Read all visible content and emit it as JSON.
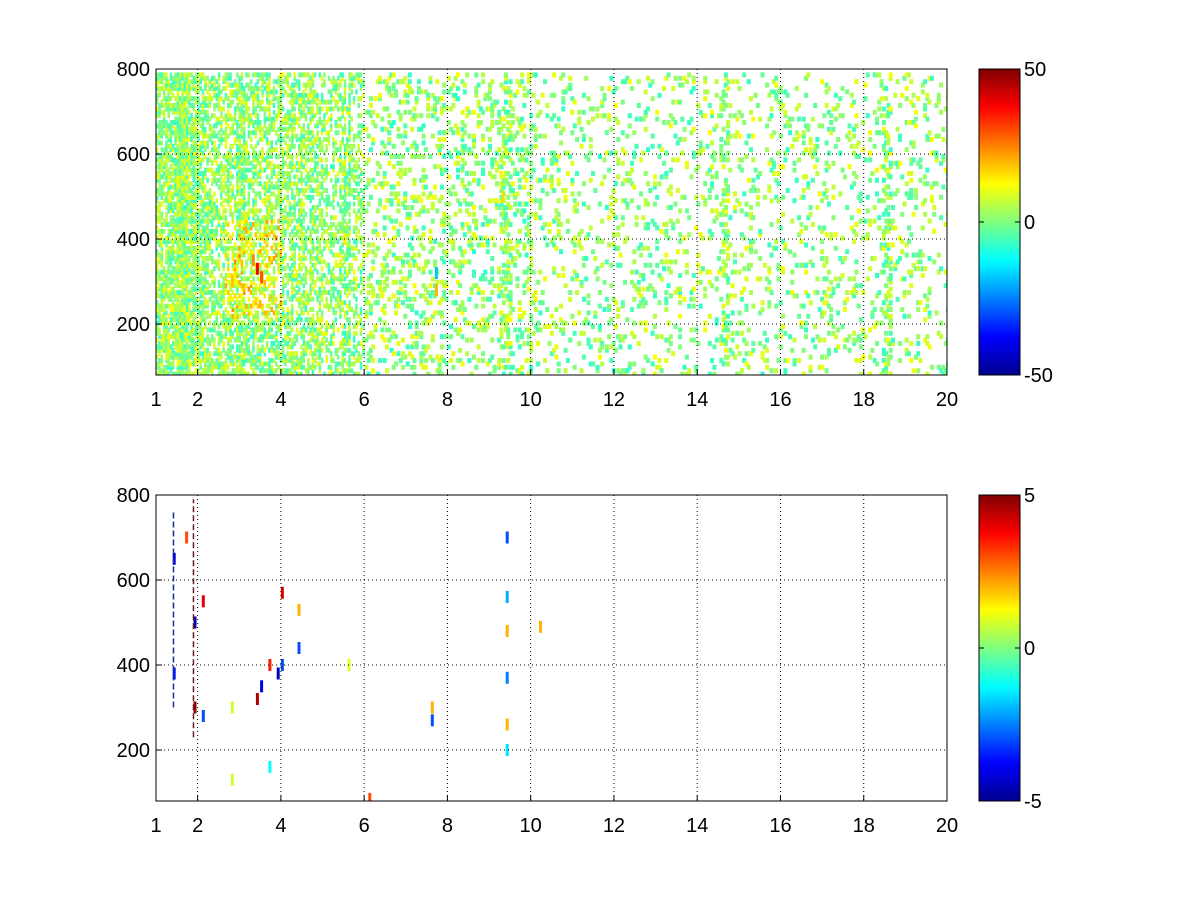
{
  "figure": {
    "colormap": "jet",
    "background": "#ffffff",
    "grid": "dotted",
    "panel_count": 2
  },
  "chart_data": [
    {
      "type": "heatmap",
      "title": "",
      "xlabel": "",
      "ylabel": "",
      "xlim": [
        1,
        20
      ],
      "ylim": [
        80,
        800
      ],
      "grid": true,
      "x_ticks": [
        1,
        2,
        4,
        6,
        8,
        10,
        12,
        14,
        16,
        18,
        20
      ],
      "x_tick_labels": [
        "1",
        "2",
        "4",
        "6",
        "8",
        "10",
        "12",
        "14",
        "16",
        "18",
        "20"
      ],
      "y_ticks": [
        200,
        400,
        600,
        800
      ],
      "y_tick_labels": [
        "200",
        "400",
        "600",
        "800"
      ],
      "colorbar": {
        "min": -50,
        "max": 50,
        "ticks": [
          50,
          0,
          -50
        ],
        "tick_labels": [
          "50",
          "0",
          "-50"
        ]
      },
      "description_values": "Dense scattered cells, mostly near 0 (values roughly -10 to 15); densest between x=1 and x=6, with hot spots near x≈3.3-3.5, y≈300-350 (up to ~40).",
      "cells": [
        {
          "x": 3.4,
          "y": 330,
          "v": 38
        },
        {
          "x": 3.5,
          "y": 310,
          "v": 30
        },
        {
          "x": 3.3,
          "y": 350,
          "v": 24
        },
        {
          "x": 2.8,
          "y": 300,
          "v": 18
        },
        {
          "x": 7.7,
          "y": 280,
          "v": 20
        },
        {
          "x": 7.7,
          "y": 320,
          "v": -18
        },
        {
          "x": 1.3,
          "y": 500,
          "v": 12
        },
        {
          "x": 5.5,
          "y": 400,
          "v": 14
        },
        {
          "x": 9.3,
          "y": 500,
          "v": 16
        }
      ]
    },
    {
      "type": "heatmap",
      "title": "",
      "xlabel": "",
      "ylabel": "",
      "xlim": [
        1,
        20
      ],
      "ylim": [
        80,
        800
      ],
      "grid": true,
      "x_ticks": [
        1,
        2,
        4,
        6,
        8,
        10,
        12,
        14,
        16,
        18,
        20
      ],
      "x_tick_labels": [
        "1",
        "2",
        "4",
        "6",
        "8",
        "10",
        "12",
        "14",
        "16",
        "18",
        "20"
      ],
      "y_ticks": [
        200,
        400,
        600,
        800
      ],
      "y_tick_labels": [
        "200",
        "400",
        "600",
        "800"
      ],
      "colorbar": {
        "min": -5,
        "max": 5,
        "ticks": [
          5,
          0,
          -5
        ],
        "tick_labels": [
          "5",
          "0",
          "-5"
        ]
      },
      "cells": [
        {
          "x": 1.9,
          "y": 500,
          "v": -4.5
        },
        {
          "x": 1.9,
          "y": 300,
          "v": 4.8
        },
        {
          "x": 1.4,
          "y": 650,
          "v": -4
        },
        {
          "x": 1.4,
          "y": 380,
          "v": -3.5
        },
        {
          "x": 1.7,
          "y": 700,
          "v": 3
        },
        {
          "x": 2.1,
          "y": 550,
          "v": 4
        },
        {
          "x": 2.1,
          "y": 280,
          "v": -3
        },
        {
          "x": 3.4,
          "y": 320,
          "v": 4.5
        },
        {
          "x": 3.5,
          "y": 350,
          "v": -4
        },
        {
          "x": 3.7,
          "y": 400,
          "v": 3.5
        },
        {
          "x": 3.9,
          "y": 380,
          "v": -4.5
        },
        {
          "x": 4.0,
          "y": 570,
          "v": 4
        },
        {
          "x": 4.0,
          "y": 400,
          "v": -3
        },
        {
          "x": 4.4,
          "y": 530,
          "v": 2
        },
        {
          "x": 4.4,
          "y": 440,
          "v": -3
        },
        {
          "x": 5.6,
          "y": 400,
          "v": 1
        },
        {
          "x": 7.6,
          "y": 300,
          "v": 2
        },
        {
          "x": 7.6,
          "y": 270,
          "v": -3
        },
        {
          "x": 9.4,
          "y": 700,
          "v": -3
        },
        {
          "x": 9.4,
          "y": 560,
          "v": -2
        },
        {
          "x": 9.4,
          "y": 480,
          "v": 2
        },
        {
          "x": 9.4,
          "y": 370,
          "v": -2.5
        },
        {
          "x": 9.4,
          "y": 260,
          "v": 2
        },
        {
          "x": 9.4,
          "y": 200,
          "v": -1.5
        },
        {
          "x": 10.2,
          "y": 490,
          "v": 2
        },
        {
          "x": 2.8,
          "y": 300,
          "v": 0.8
        },
        {
          "x": 2.8,
          "y": 130,
          "v": 0.8
        },
        {
          "x": 3.7,
          "y": 160,
          "v": -1.2
        },
        {
          "x": 6.1,
          "y": 85,
          "v": 3
        }
      ]
    }
  ]
}
